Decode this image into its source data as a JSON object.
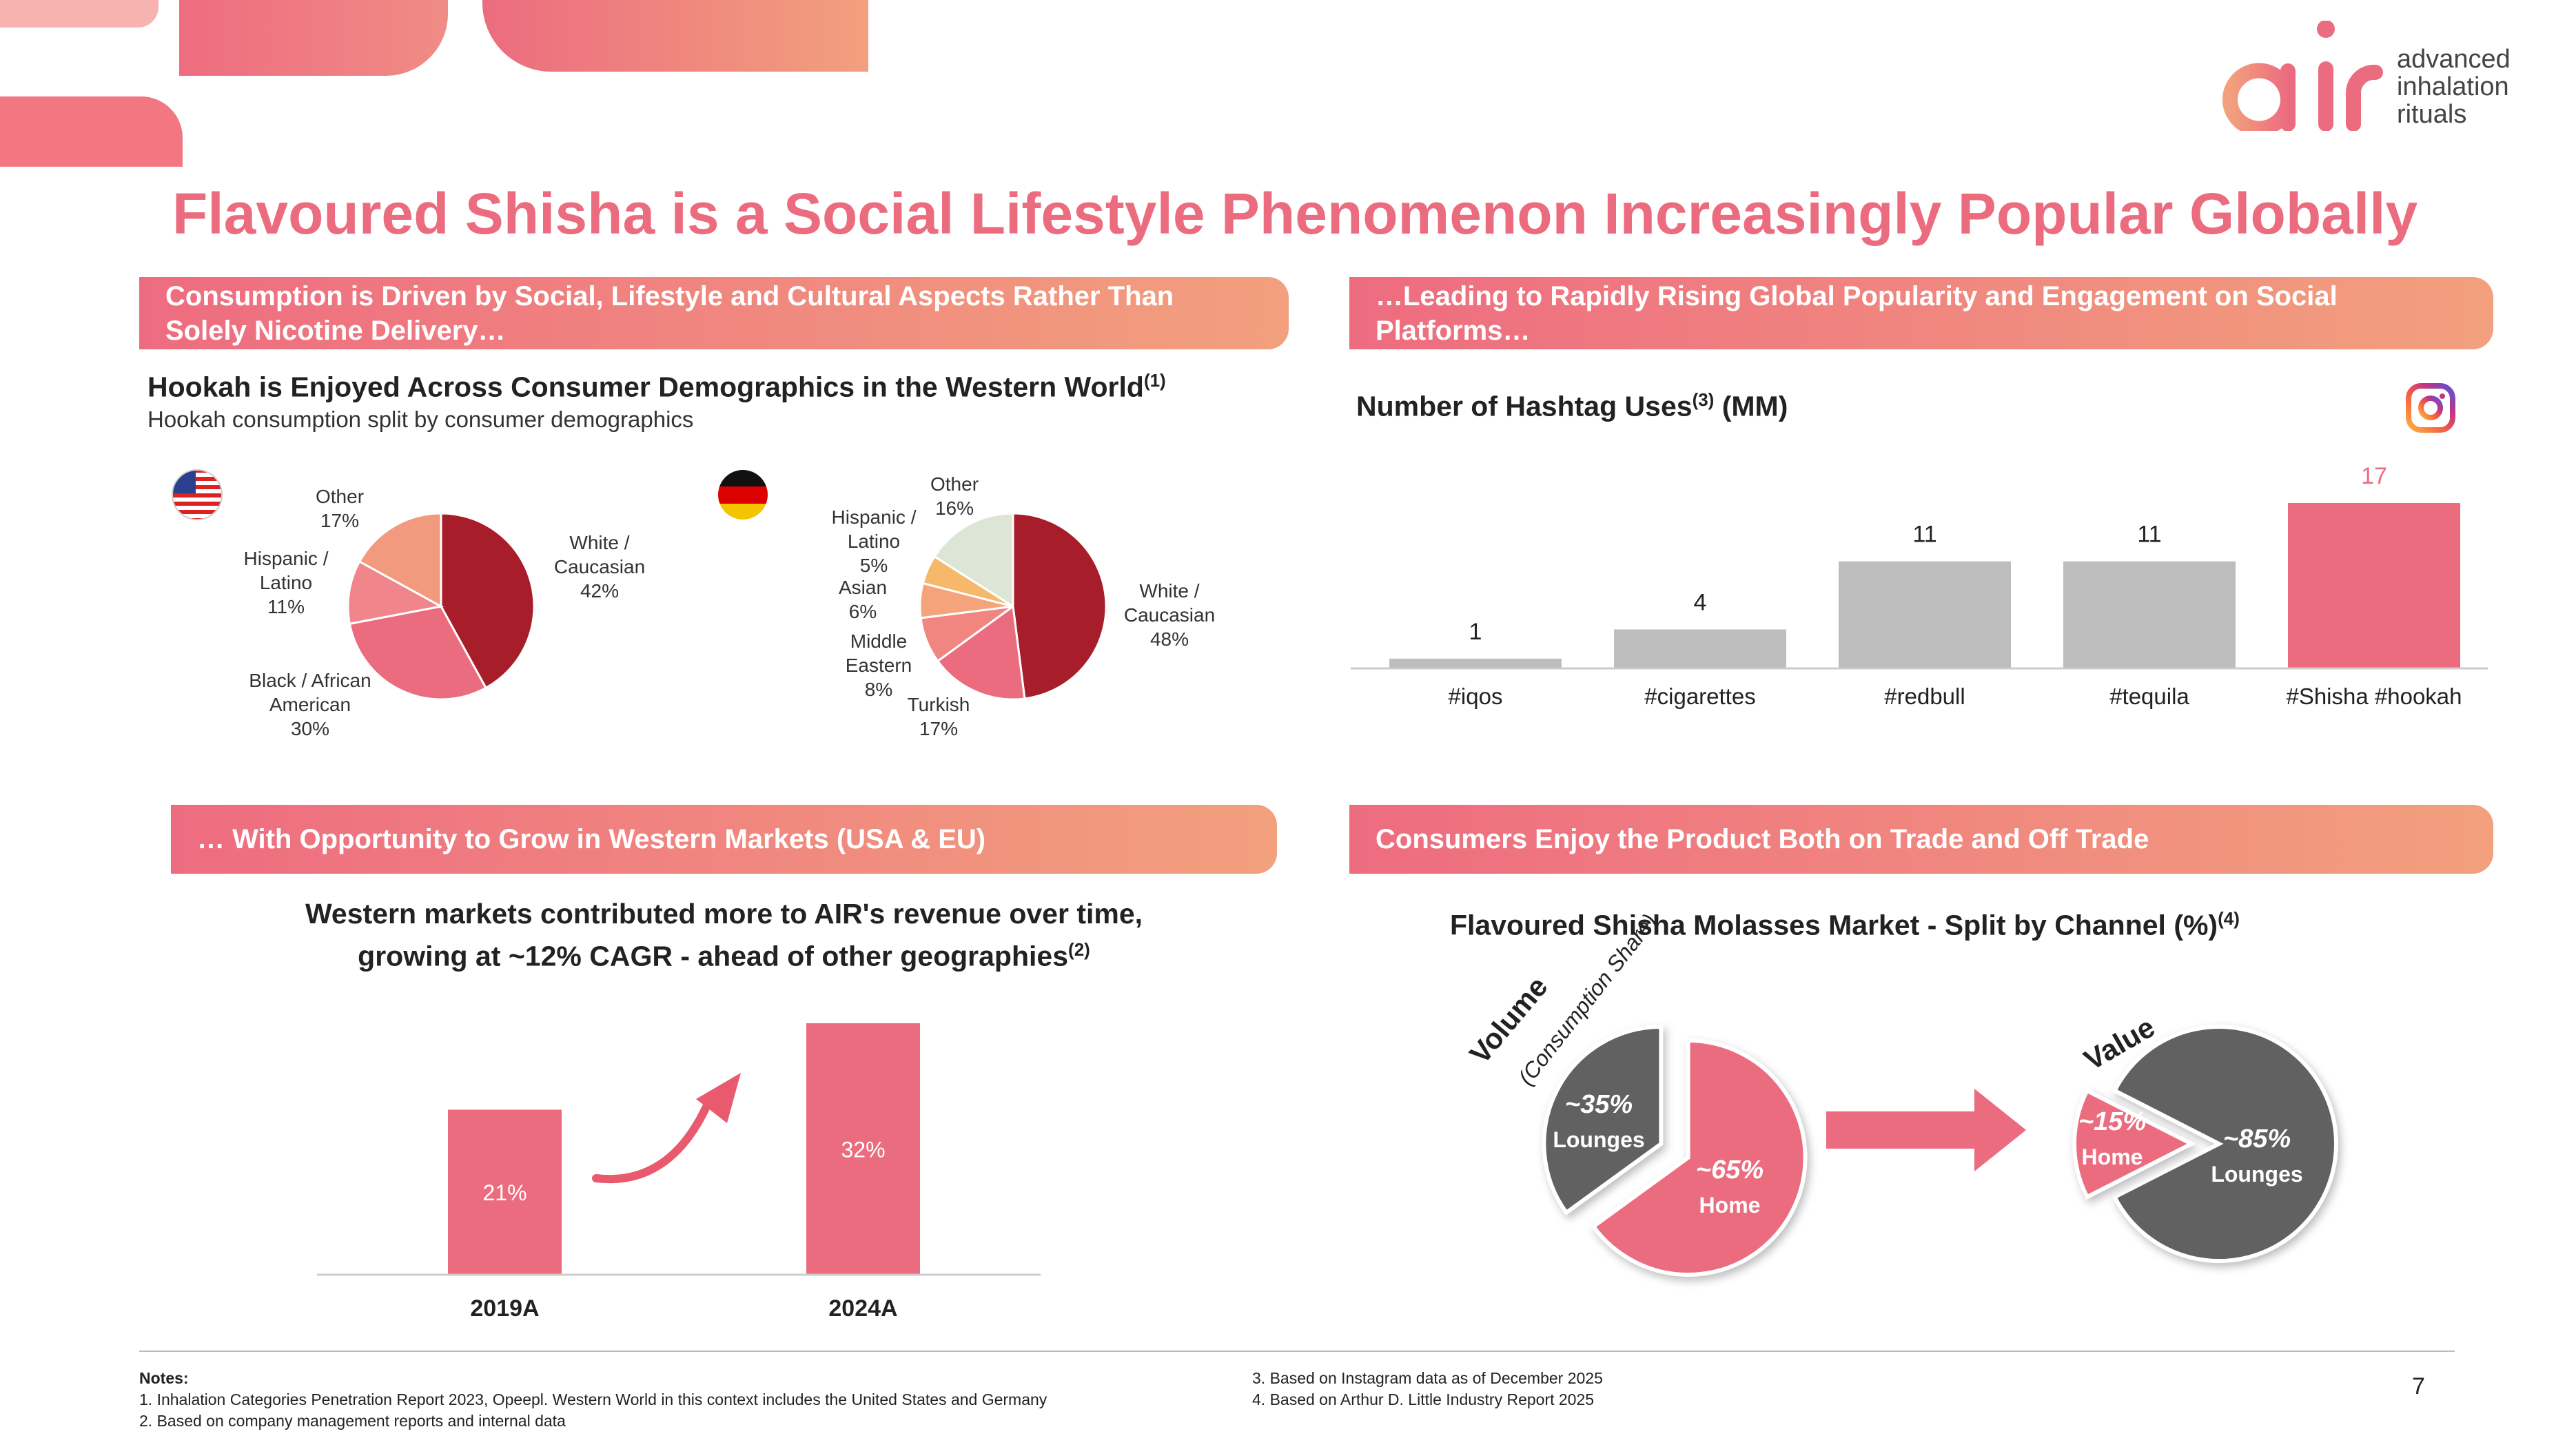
{
  "page": {
    "title": "Flavoured Shisha is a Social Lifestyle Phenomenon Increasingly Popular Globally",
    "page_number": "7",
    "brand": {
      "wordmark": "air",
      "tagline_lines": [
        "advanced",
        "inhalation",
        "rituals"
      ]
    }
  },
  "colors": {
    "accent": "#ec6c7f",
    "dark_red": "#a71d2a",
    "grey_bar": "#bdbdbd",
    "dark_grey": "#616161",
    "banner_start": "#ee6c80",
    "banner_end": "#f2a07e"
  },
  "top_left": {
    "banner": "Consumption is Driven by Social, Lifestyle and Cultural Aspects Rather Than Solely Nicotine Delivery…",
    "heading": "Hookah is Enjoyed Across Consumer Demographics in the Western World",
    "heading_sup": "(1)",
    "subheading": "Hookah consumption split by consumer demographics",
    "usa_flag_icon": "us-flag-icon",
    "germany_flag_icon": "germany-flag-icon"
  },
  "top_right": {
    "banner": "…Leading to Rapidly Rising Global Popularity and Engagement on Social Platforms…",
    "heading": "Number of Hashtag Uses",
    "heading_sup": "(3)",
    "heading_unit": "(MM)",
    "icon": "instagram-icon"
  },
  "bottom_left": {
    "banner": "… With Opportunity to Grow in Western Markets (USA & EU)",
    "heading_line1": "Western markets contributed more to AIR's revenue over time,",
    "heading_line2": "growing at ~12% CAGR - ahead of other geographies",
    "heading_sup": "(2)",
    "arrow_icon": "growth-arrow-icon"
  },
  "bottom_right": {
    "banner": "Consumers Enjoy the Product Both on Trade and Off Trade",
    "heading": "Flavoured Shisha Molasses Market - Split by Channel (%)",
    "heading_sup": "(4)",
    "volume_label": "Volume",
    "volume_sublabel": "(Consumption Share)",
    "value_label": "Value",
    "arrow_icon": "right-arrow-icon"
  },
  "notes": {
    "label": "Notes:",
    "left": [
      "1.  Inhalation Categories Penetration Report 2023, Opeepl. Western World in this context includes the United States and Germany",
      "2.  Based on company management reports and internal data"
    ],
    "right": [
      "3.  Based on Instagram data as of December 2025",
      "4.  Based on Arthur D. Little Industry Report 2025"
    ]
  },
  "chart_data": [
    {
      "type": "pie",
      "region": "USA",
      "slices": [
        {
          "label_lines": [
            "White /",
            "Caucasian"
          ],
          "pct": "42%",
          "value": 42,
          "color": "#a71d2a"
        },
        {
          "label_lines": [
            "Black / African",
            "American"
          ],
          "pct": "30%",
          "value": 30,
          "color": "#ec6c7f"
        },
        {
          "label_lines": [
            "Hispanic /",
            "Latino"
          ],
          "pct": "11%",
          "value": 11,
          "color": "#f0868c"
        },
        {
          "label_lines": [
            "Other"
          ],
          "pct": "17%",
          "value": 17,
          "color": "#f29a7e"
        }
      ]
    },
    {
      "type": "pie",
      "region": "Germany",
      "slices": [
        {
          "label_lines": [
            "White /",
            "Caucasian"
          ],
          "pct": "48%",
          "value": 48,
          "color": "#a71d2a"
        },
        {
          "label_lines": [
            "Turkish"
          ],
          "pct": "17%",
          "value": 17,
          "color": "#ec6c7f"
        },
        {
          "label_lines": [
            "Middle",
            "Eastern"
          ],
          "pct": "8%",
          "value": 8,
          "color": "#f0867f"
        },
        {
          "label_lines": [
            "Asian"
          ],
          "pct": "6%",
          "value": 6,
          "color": "#f5a37b"
        },
        {
          "label_lines": [
            "Hispanic /",
            "Latino"
          ],
          "pct": "5%",
          "value": 5,
          "color": "#f6b86a"
        },
        {
          "label_lines": [
            "Other"
          ],
          "pct": "16%",
          "value": 16,
          "color": "#dde6d4"
        }
      ]
    },
    {
      "type": "bar",
      "categories": [
        "#iqos",
        "#cigarettes",
        "#redbull",
        "#tequila",
        "#Shisha #hookah"
      ],
      "values": [
        1,
        4,
        11,
        11,
        17
      ],
      "value_labels": [
        "1",
        "4",
        "11",
        "11",
        "17"
      ],
      "ylim": [
        0,
        17
      ],
      "highlight_index": 4
    },
    {
      "type": "bar",
      "categories": [
        "2019A",
        "2024A"
      ],
      "values": [
        21,
        32
      ],
      "value_labels": [
        "21%",
        "32%"
      ],
      "ylim": [
        0,
        32
      ]
    },
    {
      "type": "pie",
      "name": "Volume",
      "slices": [
        {
          "label": "Home",
          "pct": "~65%",
          "value": 65,
          "color": "#ec6c7f"
        },
        {
          "label": "Lounges",
          "pct": "~35%",
          "value": 35,
          "color": "#616161"
        }
      ]
    },
    {
      "type": "pie",
      "name": "Value",
      "slices": [
        {
          "label": "Lounges",
          "pct": "~85%",
          "value": 85,
          "color": "#616161"
        },
        {
          "label": "Home",
          "pct": "~15%",
          "value": 15,
          "color": "#ec6c7f"
        }
      ]
    }
  ]
}
